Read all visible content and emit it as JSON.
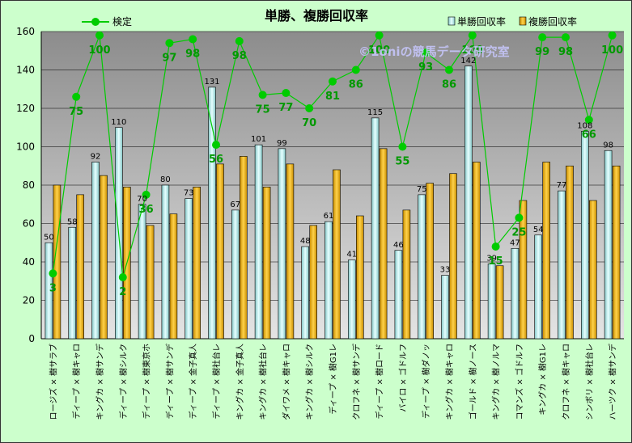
{
  "chart_data": {
    "type": "bar",
    "title": "単勝、複勝回収率",
    "watermark": "©1oniの競馬データ研究室",
    "categories": [
      "ロージズ × 樹サラブ",
      "ディープ × 樹キャロ",
      "キングカ × 樹サンデ",
      "ディープ × 樹シルク",
      "ディープ × 樹東京ホ",
      "ディープ × 樹サンデ",
      "ディープ × 金子真人",
      "ディープ × 樹社台レ",
      "キングカ × 金子真人",
      "キングカ × 樹社台レ",
      "ダイワメ × 樹キャロ",
      "キングカ × 樹シルク",
      "ディープ × 樹G1レ",
      "クロフネ × 樹サンデ",
      "ディープ × 樹ロード",
      "バイロ × ゴドルフ",
      "ディープ × 樹ダノッ",
      "キングカ × 樹キャロ",
      "ゴールド × 樹ノース",
      "キングカ × 樹ノルマ",
      "コマンズ × ゴドルフ",
      "キングカ × 樹G1レ",
      "クロフネ × 樹キャロ",
      "シンボリ × 樹社台レ",
      "ハーツク × 樹サンデ"
    ],
    "series": [
      {
        "name": "単勝回収率",
        "color": "#ccf0f0",
        "values": [
          50,
          58,
          92,
          110,
          70,
          80,
          73,
          131,
          67,
          101,
          99,
          48,
          61,
          41,
          115,
          46,
          75,
          33,
          142,
          39,
          47,
          54,
          77,
          108,
          98
        ]
      },
      {
        "name": "複勝回収率",
        "color": "#f0b400",
        "values": [
          80,
          75,
          85,
          79,
          59,
          65,
          79,
          91,
          95,
          79,
          91,
          59,
          88,
          64,
          99,
          67,
          81,
          86,
          92,
          38,
          72,
          92,
          90,
          72,
          90
        ]
      }
    ],
    "line_series": {
      "name": "検定",
      "color": "#00cc00",
      "values": [
        34,
        126,
        158,
        32,
        75,
        154,
        156,
        101,
        155,
        127,
        128,
        120,
        134,
        140,
        158,
        100,
        149,
        140,
        158,
        48,
        63,
        157,
        157,
        114,
        158
      ],
      "labels": [
        "3",
        "75",
        "100",
        "2",
        "36",
        "97",
        "98",
        "56",
        "98",
        "75",
        "77",
        "70",
        "81",
        "86",
        "100",
        "55",
        "93",
        "86",
        "100",
        "15",
        "25",
        "99",
        "98",
        "66",
        "100"
      ]
    },
    "yticks": [
      0,
      20,
      40,
      60,
      80,
      100,
      120,
      140,
      160
    ],
    "ylim": [
      0,
      160
    ],
    "grid": true,
    "legend": "top"
  }
}
